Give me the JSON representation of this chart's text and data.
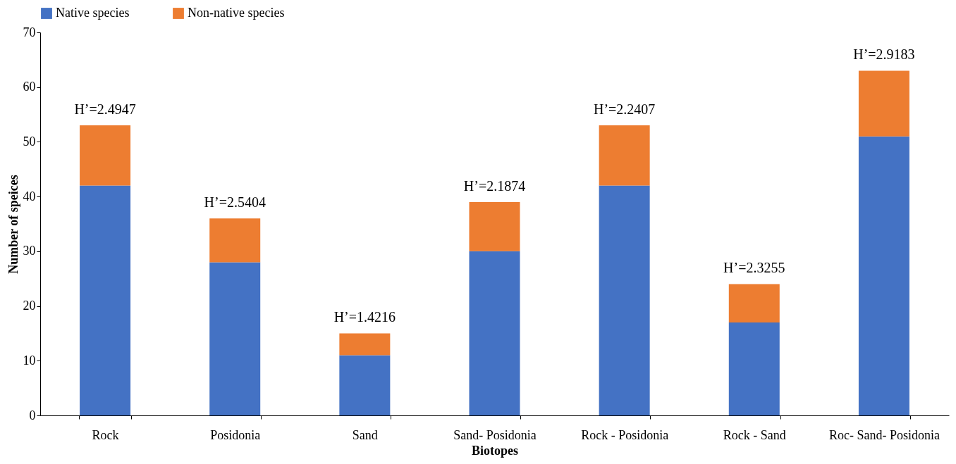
{
  "chart_data": {
    "type": "bar",
    "stacked": true,
    "xlabel": "Biotopes",
    "ylabel": "Number of speices",
    "categories": [
      "Rock",
      "Posidonia",
      "Sand",
      "Sand- Posidonia",
      "Rock - Posidonia",
      "Rock - Sand",
      "Roc- Sand- Posidonia"
    ],
    "series": [
      {
        "name": "Native species",
        "color": "#4472c4",
        "values": [
          42,
          28,
          11,
          30,
          42,
          17,
          51
        ]
      },
      {
        "name": "Non-native species",
        "color": "#ed7d31",
        "values": [
          11,
          8,
          4,
          9,
          11,
          7,
          12
        ]
      }
    ],
    "ylim": [
      0,
      70
    ],
    "yticks": [
      0,
      10,
      20,
      30,
      40,
      50,
      60,
      70
    ],
    "grid": false,
    "legend": "top",
    "annotations": [
      {
        "text": "H’=2.4947",
        "x": "Rock",
        "y": 53
      },
      {
        "text": "H’=2.5404",
        "x": "Posidonia",
        "y": 36
      },
      {
        "text": "H’=1.4216",
        "x": "Sand",
        "y": 15
      },
      {
        "text": "H’=2.1874",
        "x": "Sand- Posidonia",
        "y": 39
      },
      {
        "text": "H’=2.2407",
        "x": "Rock - Posidonia",
        "y": 53
      },
      {
        "text": "H’=2.3255",
        "x": "Rock - Sand",
        "y": 24
      },
      {
        "text": "H’=2.9183",
        "x": "Roc- Sand- Posidonia",
        "y": 63
      }
    ]
  }
}
